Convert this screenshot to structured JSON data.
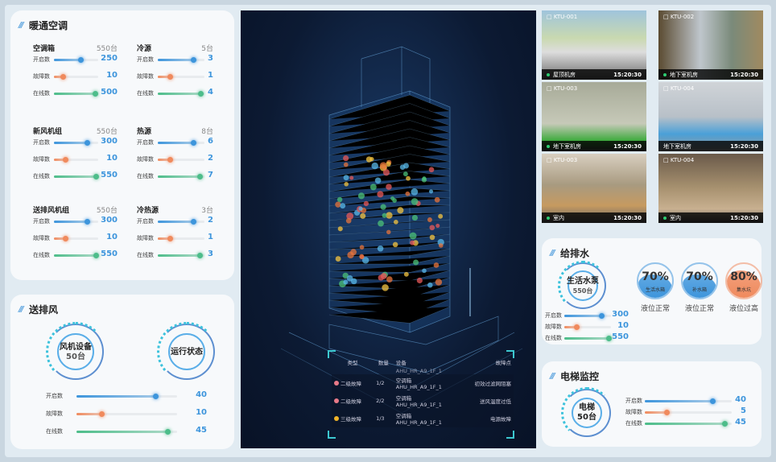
{
  "hvac": {
    "title": "暖通空调",
    "groups": [
      {
        "name": "空调箱",
        "total": "550台",
        "rows": [
          {
            "label": "开启数",
            "value": "250",
            "fill": 0.6
          },
          {
            "label": "故障数",
            "value": "10",
            "fill": 0.2
          },
          {
            "label": "在线数",
            "value": "500",
            "fill": 0.92
          }
        ]
      },
      {
        "name": "冷源",
        "total": "5台",
        "rows": [
          {
            "label": "开启数",
            "value": "3",
            "fill": 0.75
          },
          {
            "label": "故障数",
            "value": "1",
            "fill": 0.25
          },
          {
            "label": "在线数",
            "value": "4",
            "fill": 0.92
          }
        ]
      },
      {
        "name": "新风机组",
        "total": "550台",
        "rows": [
          {
            "label": "开启数",
            "value": "300",
            "fill": 0.75
          },
          {
            "label": "故障数",
            "value": "10",
            "fill": 0.25
          },
          {
            "label": "在线数",
            "value": "550",
            "fill": 0.95
          }
        ]
      },
      {
        "name": "热源",
        "total": "8台",
        "rows": [
          {
            "label": "开启数",
            "value": "6",
            "fill": 0.75
          },
          {
            "label": "故障数",
            "value": "2",
            "fill": 0.25
          },
          {
            "label": "在线数",
            "value": "7",
            "fill": 0.9
          }
        ]
      },
      {
        "name": "送排风机组",
        "total": "550台",
        "rows": [
          {
            "label": "开启数",
            "value": "300",
            "fill": 0.75
          },
          {
            "label": "故障数",
            "value": "10",
            "fill": 0.25
          },
          {
            "label": "在线数",
            "value": "550",
            "fill": 0.95
          }
        ]
      },
      {
        "name": "冷热源",
        "total": "3台",
        "rows": [
          {
            "label": "开启数",
            "value": "2",
            "fill": 0.75
          },
          {
            "label": "故障数",
            "value": "1",
            "fill": 0.25
          },
          {
            "label": "在线数",
            "value": "3",
            "fill": 0.9
          }
        ]
      }
    ]
  },
  "ventilation": {
    "title": "送排风",
    "device_name": "风机设备",
    "device_count": "50台",
    "status_label": "运行状态",
    "rows": [
      {
        "label": "开启数",
        "value": "40",
        "fill": 0.78
      },
      {
        "label": "故障数",
        "value": "10",
        "fill": 0.25
      },
      {
        "label": "在线数",
        "value": "45",
        "fill": 0.9
      }
    ]
  },
  "fault_table": {
    "headers": [
      "类型",
      "数量",
      "设备",
      "故障点"
    ],
    "scroll_partial": "AHU_HR_A9_1F_1",
    "rows": [
      {
        "level": "二级故障",
        "color": "#e87a88",
        "count": "1/2",
        "device": "空调箱",
        "device_id": "AHU_HR_A9_1F_1",
        "point": "初效过滤网阻塞"
      },
      {
        "level": "二级故障",
        "color": "#e87a88",
        "count": "2/2",
        "device": "空调箱",
        "device_id": "AHU_HR_A9_1F_1",
        "point": "送风温度过低"
      },
      {
        "level": "三级故障",
        "color": "#f0b429",
        "count": "1/3",
        "device": "空调箱",
        "device_id": "AHU_HR_A9_1F_1",
        "point": "电源故障"
      }
    ]
  },
  "cameras": [
    {
      "id": "KTU-001",
      "location": "屋顶机房",
      "time": "15:20:30",
      "online": true
    },
    {
      "id": "KTU-002",
      "location": "地下室机房",
      "time": "15:20:30",
      "online": true
    },
    {
      "id": "KTU-003",
      "location": "地下室机房",
      "time": "15:20:30",
      "online": true
    },
    {
      "id": "KTU-004",
      "location": "地下室机房",
      "time": "15:20:30",
      "online": false
    },
    {
      "id": "KTU-003",
      "location": "室内",
      "time": "15:20:30",
      "online": true
    },
    {
      "id": "KTU-004",
      "location": "室内",
      "time": "15:20:30",
      "online": true
    }
  ],
  "water": {
    "title": "给排水",
    "device_name": "生活水泵",
    "device_count": "550台",
    "rows": [
      {
        "label": "开启数",
        "value": "300",
        "fill": 0.8
      },
      {
        "label": "故障数",
        "value": "10",
        "fill": 0.25
      },
      {
        "label": "在线数",
        "value": "550",
        "fill": 0.95
      }
    ],
    "tanks": [
      {
        "percent": "70%",
        "level": 0.7,
        "name": "生活水箱",
        "status": "液位正常",
        "color": "#3d95dc"
      },
      {
        "percent": "70%",
        "level": 0.7,
        "name": "补水箱",
        "status": "液位正常",
        "color": "#3d95dc"
      },
      {
        "percent": "80%",
        "level": 0.8,
        "name": "集水坑",
        "status": "液位过高",
        "color": "#f08a5d"
      }
    ]
  },
  "elevator": {
    "title": "电梯监控",
    "device_name": "电梯",
    "device_count": "50台",
    "rows": [
      {
        "label": "开启数",
        "value": "40",
        "fill": 0.78
      },
      {
        "label": "故障数",
        "value": "5",
        "fill": 0.25
      },
      {
        "label": "在线数",
        "value": "45",
        "fill": 0.92
      }
    ]
  },
  "colors": {
    "on": "#3d95dc",
    "fault": "#f08a5d",
    "online": "#4dbd8a",
    "accent": "#3d95dc"
  }
}
